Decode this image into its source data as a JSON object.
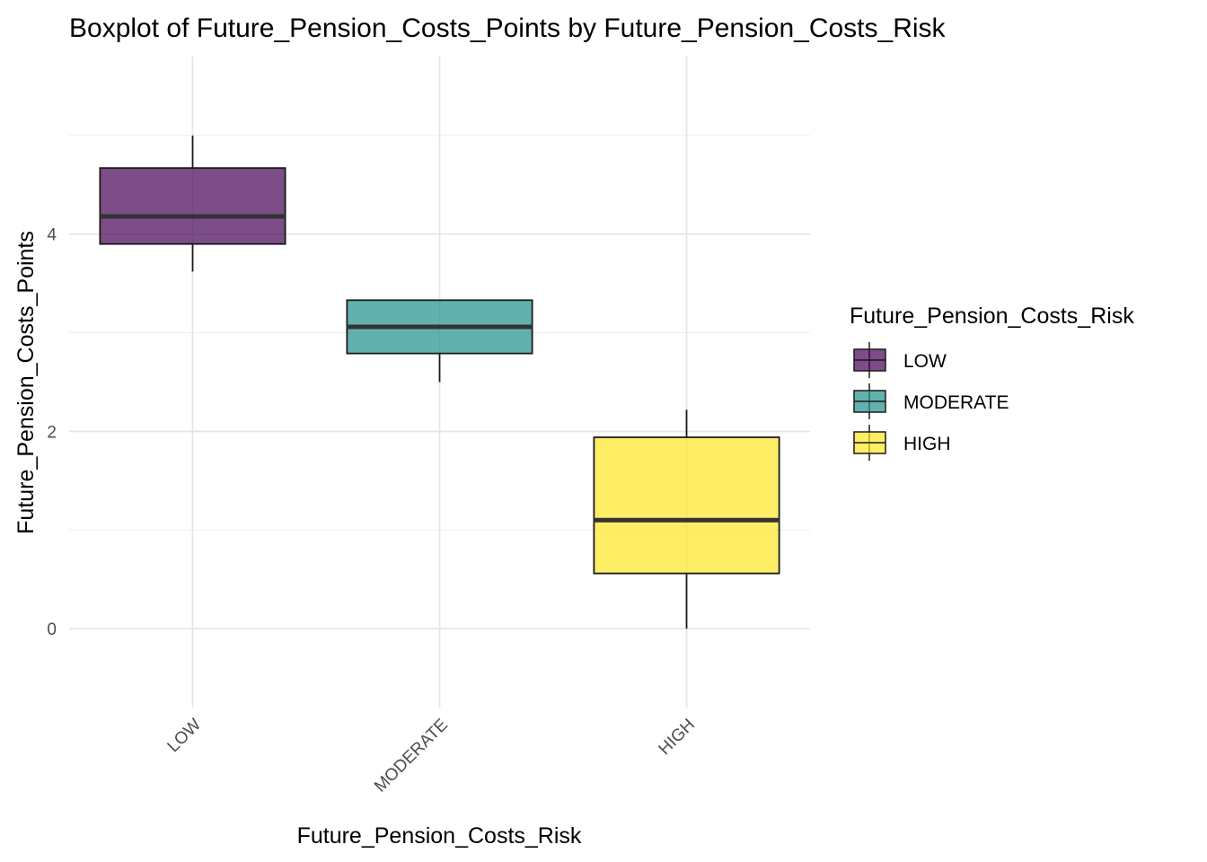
{
  "chart_data": {
    "type": "boxplot",
    "title": "Boxplot of Future_Pension_Costs_Points by Future_Pension_Costs_Risk",
    "xlabel": "Future_Pension_Costs_Risk",
    "ylabel": "Future_Pension_Costs_Points",
    "categories": [
      "LOW",
      "MODERATE",
      "HIGH"
    ],
    "boxes": [
      {
        "category": "LOW",
        "min": 3.62,
        "q1": 3.9,
        "median": 4.18,
        "q3": 4.67,
        "max": 5.0,
        "color": "#440154"
      },
      {
        "category": "MODERATE",
        "min": 2.5,
        "q1": 2.79,
        "median": 3.06,
        "q3": 3.33,
        "max": 3.33,
        "color": "#21908C"
      },
      {
        "category": "HIGH",
        "min": 0.0,
        "q1": 0.56,
        "median": 1.1,
        "q3": 1.94,
        "max": 2.22,
        "color": "#FDE725"
      }
    ],
    "ylim": [
      -0.8,
      5.8
    ],
    "yticks": [
      0,
      2,
      4
    ],
    "grid": true,
    "legend": {
      "title": "Future_Pension_Costs_Risk",
      "placement": "right",
      "entries": [
        "LOW",
        "MODERATE",
        "HIGH"
      ]
    }
  }
}
